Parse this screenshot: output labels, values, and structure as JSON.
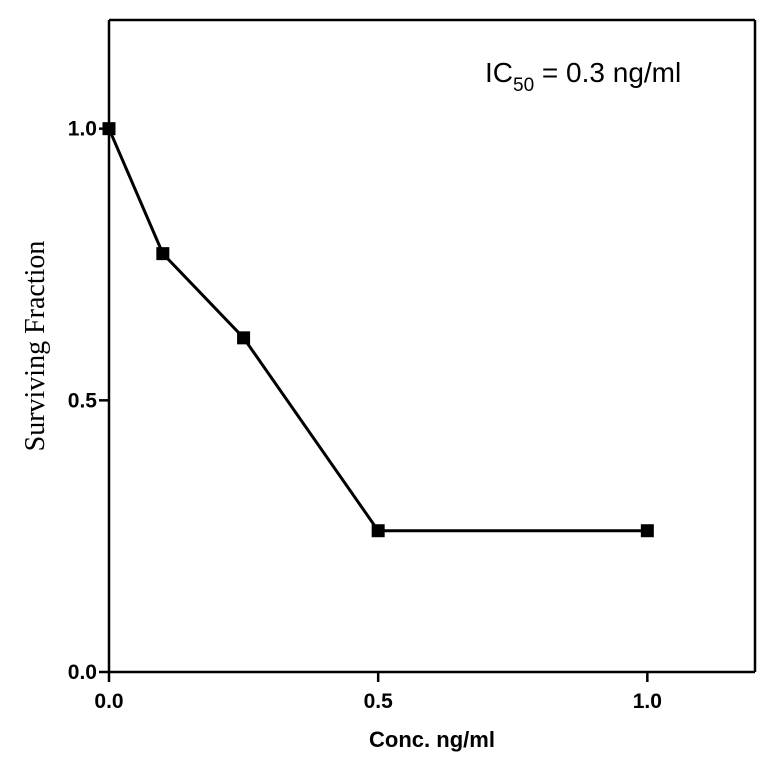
{
  "chart_data": {
    "type": "line",
    "xlabel": "Conc. ng/ml",
    "ylabel": "Surviving Fraction",
    "xlim": [
      0,
      1.2
    ],
    "ylim": [
      0,
      1.2
    ],
    "x_ticks": [
      0.0,
      0.5,
      1.0
    ],
    "x_tick_labels": [
      "0.0",
      "0.5",
      "1.0"
    ],
    "y_ticks": [
      0.0,
      0.5,
      1.0
    ],
    "y_tick_labels": [
      "0.0",
      "0.5",
      "1.0"
    ],
    "grid": false,
    "annotation": {
      "prefix": "IC",
      "subscript": "50",
      "suffix": " = 0.3 ng/ml",
      "placement": "top-right"
    },
    "series": [
      {
        "marker": "square",
        "color": "#000000",
        "x": [
          0.0,
          0.1,
          0.25,
          0.5,
          1.0
        ],
        "y": [
          1.0,
          0.77,
          0.615,
          0.26,
          0.26
        ]
      }
    ]
  }
}
